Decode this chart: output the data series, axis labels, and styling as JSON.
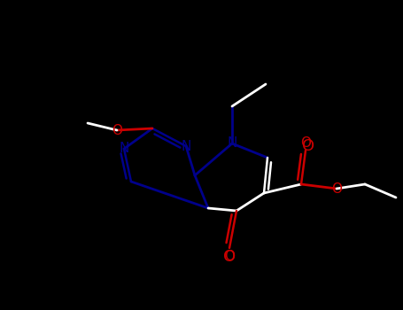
{
  "bg_color": "#000000",
  "fig_width": 4.55,
  "fig_height": 3.5,
  "dpi": 100,
  "colors": {
    "N": "#00008B",
    "O": "#CC0000",
    "C": "#FFFFFF",
    "bond": "#FFFFFF"
  },
  "lw": 1.8
}
